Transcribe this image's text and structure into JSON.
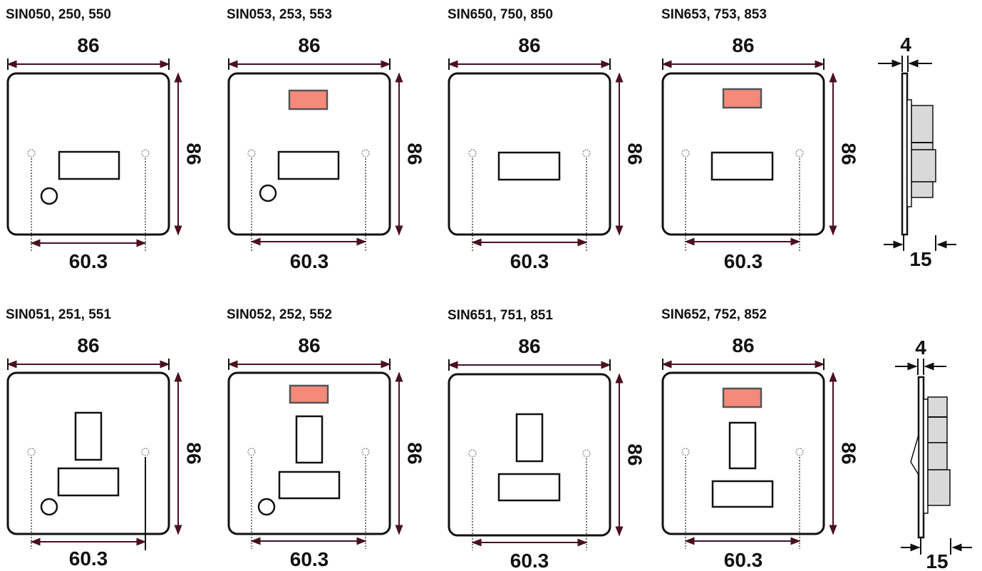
{
  "colors": {
    "neon": "#f58a7a",
    "dimension_line": "#4a1020",
    "outline": "#111111",
    "side_fill": "#d9d9d9"
  },
  "panels": [
    {
      "label": "SIN050, 250, 550",
      "width": "86",
      "height": "86",
      "fixing": "60.3",
      "neon": false,
      "switch": false,
      "flex_outlet": true
    },
    {
      "label": "SIN053, 253, 553",
      "width": "86",
      "height": "86",
      "fixing": "60.3",
      "neon": true,
      "switch": false,
      "flex_outlet": true
    },
    {
      "label": "SIN650, 750, 850",
      "width": "86",
      "height": "86",
      "fixing": "60.3",
      "neon": false,
      "switch": false,
      "flex_outlet": false
    },
    {
      "label": "SIN653, 753, 853",
      "width": "86",
      "height": "86",
      "fixing": "60.3",
      "neon": true,
      "switch": false,
      "flex_outlet": false
    },
    {
      "label": "SIN051, 251, 551",
      "width": "86",
      "height": "86",
      "fixing": "60.3",
      "neon": false,
      "switch": true,
      "flex_outlet": true
    },
    {
      "label": "SIN052, 252, 552",
      "width": "86",
      "height": "86",
      "fixing": "60.3",
      "neon": true,
      "switch": true,
      "flex_outlet": true
    },
    {
      "label": "SIN651, 751, 851",
      "width": "86",
      "height": "86",
      "fixing": "60.3",
      "neon": false,
      "switch": true,
      "flex_outlet": false
    },
    {
      "label": "SIN652, 752, 852",
      "width": "86",
      "height": "86",
      "fixing": "60.3",
      "neon": true,
      "switch": true,
      "flex_outlet": false
    }
  ],
  "side_views": [
    {
      "plate_thickness": "4",
      "depth": "15"
    },
    {
      "plate_thickness": "4",
      "depth": "15"
    }
  ]
}
